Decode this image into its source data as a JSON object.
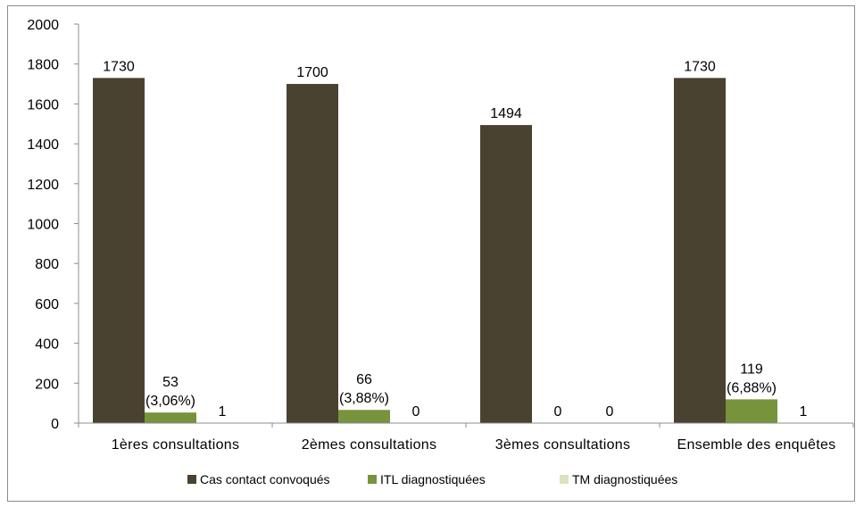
{
  "chart_data": {
    "type": "bar",
    "categories": [
      "1ères consultations",
      "2èmes consultations",
      "3èmes consultations",
      "Ensemble des enquêtes"
    ],
    "series": [
      {
        "name": "Cas contact convoqués",
        "color": "#4a4230",
        "values": [
          1730,
          1700,
          1494,
          1730
        ],
        "labels": [
          [
            "1730"
          ],
          [
            "1700"
          ],
          [
            "1494"
          ],
          [
            "1730"
          ]
        ]
      },
      {
        "name": "ITL diagnostiquées",
        "color": "#77933c",
        "values": [
          53,
          66,
          0,
          119
        ],
        "labels": [
          [
            "53",
            "(3,06%)"
          ],
          [
            "66",
            "(3,88%)"
          ],
          [
            "0"
          ],
          [
            "119",
            "(6,88%)"
          ]
        ]
      },
      {
        "name": "TM diagnostiquées",
        "color": "#d7e4bd",
        "values": [
          1,
          0,
          0,
          1
        ],
        "labels": [
          [
            "1"
          ],
          [
            "0"
          ],
          [
            "0"
          ],
          [
            "1"
          ]
        ]
      }
    ],
    "ylim": [
      0,
      2000
    ],
    "yticks": [
      0,
      200,
      400,
      600,
      800,
      1000,
      1200,
      1400,
      1600,
      1800,
      2000
    ],
    "legend": "bottom",
    "grid": false
  }
}
